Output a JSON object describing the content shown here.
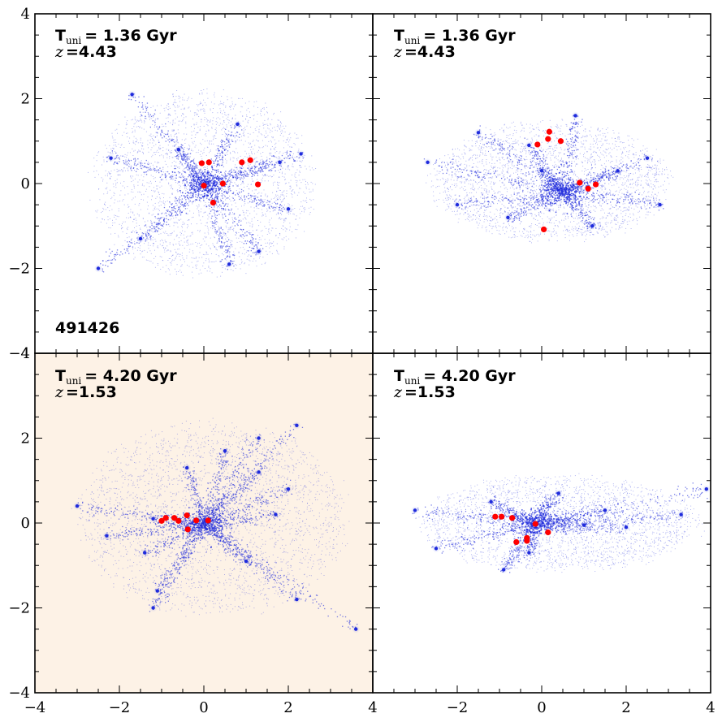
{
  "figure": {
    "id_label": "491426"
  },
  "colors": {
    "particles": "#1f2bdc",
    "galaxies": "#ff0000",
    "highlight_background": "#fdf2e6",
    "axes": "#000000"
  },
  "chart_data": [
    {
      "type": "scatter",
      "panel": "top-left",
      "time_prefix": "T",
      "time_subscript": "uni",
      "time_value": "= 1.36 Gyr",
      "redshift_symbol": "z",
      "redshift_value": "=4.43",
      "xlim": [
        -4,
        4
      ],
      "ylim": [
        -4,
        4
      ],
      "y_tick_labels": [
        "−4",
        "−2",
        "0",
        "2",
        "4"
      ],
      "x_tick_labels": [],
      "highlighted": false,
      "particle_cloud": {
        "center": [
          0.0,
          0.0
        ],
        "radius_x": 2.8,
        "radius_y": 2.3
      },
      "filament_nodes": [
        [
          -1.7,
          2.1
        ],
        [
          -0.6,
          0.8
        ],
        [
          0.0,
          0.0
        ],
        [
          1.8,
          0.5
        ],
        [
          2.3,
          0.7
        ],
        [
          -2.5,
          -2.0
        ],
        [
          -1.5,
          -1.3
        ],
        [
          1.3,
          -1.6
        ],
        [
          0.6,
          -1.9
        ],
        [
          -2.2,
          0.6
        ],
        [
          0.8,
          1.4
        ],
        [
          2.0,
          -0.6
        ]
      ],
      "galaxies": {
        "x": [
          -0.05,
          0.12,
          0.9,
          1.1,
          0.0,
          0.45,
          1.28,
          0.22
        ],
        "y": [
          0.48,
          0.5,
          0.5,
          0.55,
          -0.05,
          0.0,
          -0.02,
          -0.45
        ]
      }
    },
    {
      "type": "scatter",
      "panel": "top-right",
      "time_prefix": "T",
      "time_subscript": "uni",
      "time_value": "= 1.36 Gyr",
      "redshift_symbol": "z",
      "redshift_value": "=4.43",
      "xlim": [
        -4,
        4
      ],
      "ylim": [
        -4,
        4
      ],
      "y_tick_labels": [],
      "x_tick_labels": [],
      "highlighted": false,
      "particle_cloud": {
        "center": [
          0.2,
          0.05
        ],
        "radius_x": 3.0,
        "radius_y": 1.5
      },
      "filament_nodes": [
        [
          -1.5,
          1.2
        ],
        [
          0.0,
          0.3
        ],
        [
          0.5,
          -0.2
        ],
        [
          2.5,
          0.6
        ],
        [
          2.8,
          -0.5
        ],
        [
          -2.7,
          0.5
        ],
        [
          -2.0,
          -0.5
        ],
        [
          -0.8,
          -0.8
        ],
        [
          1.2,
          -1.0
        ],
        [
          0.8,
          1.6
        ],
        [
          -0.3,
          0.9
        ],
        [
          1.8,
          0.3
        ]
      ],
      "galaxies": {
        "x": [
          -0.1,
          0.15,
          0.18,
          0.45,
          0.9,
          1.1,
          1.28,
          0.05
        ],
        "y": [
          0.92,
          1.05,
          1.22,
          1.0,
          0.02,
          -0.12,
          -0.02,
          -1.08
        ]
      }
    },
    {
      "type": "scatter",
      "panel": "bottom-left",
      "time_prefix": "T",
      "time_subscript": "uni",
      "time_value": "= 4.20 Gyr",
      "redshift_symbol": "z",
      "redshift_value": "=1.53",
      "xlim": [
        -4,
        4
      ],
      "ylim": [
        -4,
        4
      ],
      "y_tick_labels": [
        "−4",
        "−2",
        "0",
        "2",
        "4"
      ],
      "x_tick_labels": [
        "−4",
        "−2",
        "0",
        "2",
        "4"
      ],
      "highlighted": true,
      "particle_cloud": {
        "center": [
          0.2,
          0.1
        ],
        "radius_x": 3.4,
        "radius_y": 2.4
      },
      "filament_nodes": [
        [
          -3.0,
          0.4
        ],
        [
          -1.2,
          0.1
        ],
        [
          0.0,
          0.0
        ],
        [
          1.7,
          0.2
        ],
        [
          2.2,
          2.3
        ],
        [
          1.3,
          1.2
        ],
        [
          0.5,
          1.7
        ],
        [
          -1.4,
          -0.7
        ],
        [
          -1.1,
          -1.6
        ],
        [
          -1.2,
          -2.0
        ],
        [
          1.0,
          -0.9
        ],
        [
          2.2,
          -1.8
        ],
        [
          3.6,
          -2.5
        ],
        [
          -2.3,
          -0.3
        ],
        [
          2.0,
          0.8
        ],
        [
          -0.4,
          1.3
        ],
        [
          1.3,
          2.0
        ]
      ],
      "galaxies": {
        "x": [
          -1.0,
          -0.9,
          -0.7,
          -0.6,
          -0.4,
          -0.18,
          0.1,
          -0.38
        ],
        "y": [
          0.05,
          0.12,
          0.12,
          0.05,
          0.18,
          0.06,
          0.06,
          -0.15
        ]
      }
    },
    {
      "type": "scatter",
      "panel": "bottom-right",
      "time_prefix": "T",
      "time_subscript": "uni",
      "time_value": "= 4.20 Gyr",
      "redshift_symbol": "z",
      "redshift_value": "=1.53",
      "xlim": [
        -4,
        4
      ],
      "ylim": [
        -4,
        4
      ],
      "y_tick_labels": [],
      "x_tick_labels": [
        "−4",
        "−2",
        "0",
        "2",
        "4"
      ],
      "highlighted": false,
      "particle_cloud": {
        "center": [
          0.4,
          0.0
        ],
        "radius_x": 3.5,
        "radius_y": 1.2
      },
      "filament_nodes": [
        [
          -3.0,
          0.3
        ],
        [
          -1.2,
          0.5
        ],
        [
          -0.2,
          0.0
        ],
        [
          1.0,
          -0.05
        ],
        [
          2.0,
          -0.1
        ],
        [
          3.3,
          0.2
        ],
        [
          3.9,
          0.8
        ],
        [
          -0.9,
          -1.1
        ],
        [
          -0.3,
          -0.7
        ],
        [
          -2.5,
          -0.6
        ],
        [
          0.4,
          0.7
        ],
        [
          1.5,
          0.3
        ]
      ],
      "galaxies": {
        "x": [
          -1.1,
          -0.95,
          -0.7,
          -0.15,
          0.15,
          -0.35,
          -0.35,
          -0.6
        ],
        "y": [
          0.15,
          0.15,
          0.12,
          -0.02,
          -0.22,
          -0.35,
          -0.42,
          -0.45
        ]
      }
    }
  ]
}
